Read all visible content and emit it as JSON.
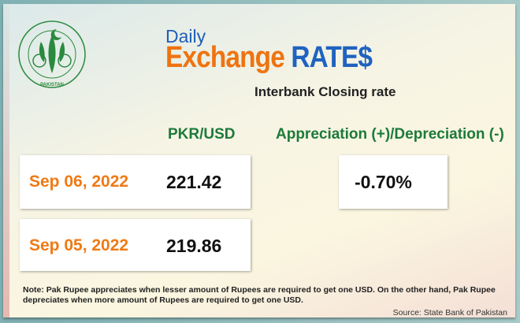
{
  "logo": {
    "text_top": "STATE BANK",
    "text_bottom": "OF PAKISTAN"
  },
  "header": {
    "daily": "Daily",
    "exchange": "Exchange",
    "rates": "RATE$",
    "subtitle": "Interbank Closing rate"
  },
  "columns": {
    "pair": "PKR/USD",
    "change": "Appreciation (+)/Depreciation (-)"
  },
  "rows": [
    {
      "date": "Sep 06, 2022",
      "rate": "221.42"
    },
    {
      "date": "Sep 05, 2022",
      "rate": "219.86"
    }
  ],
  "change_value": "-0.70%",
  "note": "Note: Pak Rupee appreciates when lesser amount of Rupees are required to get one USD.  On the other hand, Pak Rupee depreciates when more amount of Rupees are required to get one USD.",
  "source": "Source: State Bank of Pakistan",
  "colors": {
    "orange": "#ee7410",
    "blue": "#1f5fb8",
    "green": "#1d7a3a"
  }
}
